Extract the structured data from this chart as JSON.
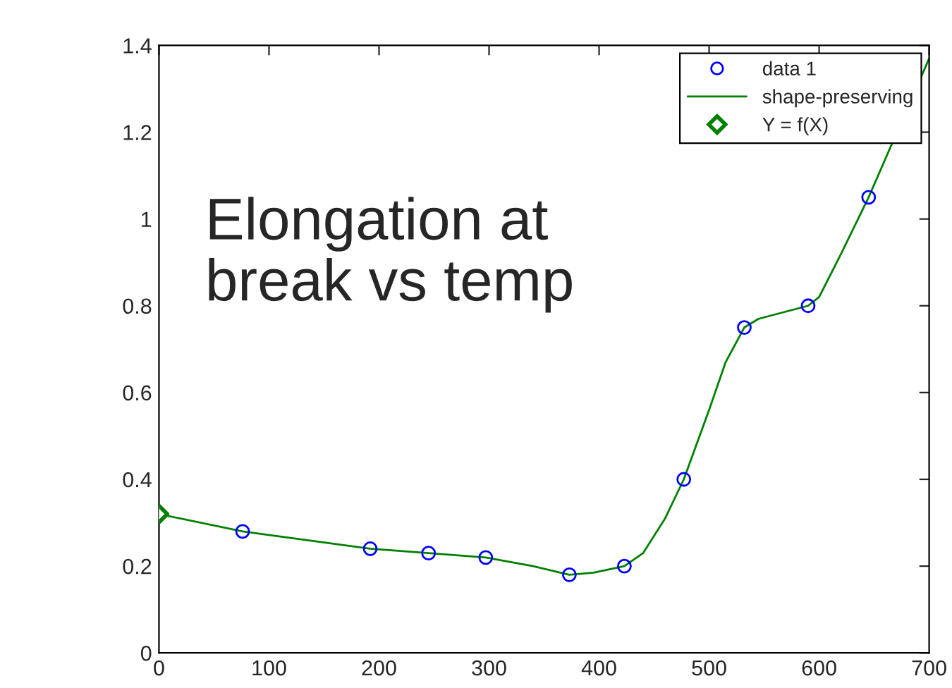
{
  "chart_data": {
    "type": "scatter",
    "title": "Elongation at break vs temp",
    "xlim": [
      0,
      700
    ],
    "xticks": [
      0,
      100,
      200,
      300,
      400,
      500,
      600,
      700
    ],
    "ylim": [
      0,
      1.4
    ],
    "yticks": [
      0,
      0.2,
      0.4,
      0.6,
      0.8,
      1,
      1.2,
      1.4
    ],
    "grid": false,
    "legend": "top right",
    "series": [
      {
        "name": "data 1",
        "marker": "circle",
        "color": "#0000ff",
        "x": [
          76,
          192,
          245,
          297,
          373,
          423,
          477,
          532,
          590,
          645
        ],
        "values": [
          0.28,
          0.24,
          0.23,
          0.22,
          0.18,
          0.2,
          0.4,
          0.75,
          0.8,
          1.05
        ]
      },
      {
        "name": "shape-preserving",
        "type": "line",
        "line_style": "solid",
        "color": "#008000",
        "x": [
          0,
          76,
          192,
          245,
          297,
          340,
          373,
          395,
          423,
          440,
          460,
          477,
          500,
          515,
          532,
          545,
          590,
          600,
          620,
          645,
          700
        ],
        "values": [
          0.32,
          0.28,
          0.24,
          0.23,
          0.22,
          0.2,
          0.18,
          0.185,
          0.2,
          0.23,
          0.31,
          0.4,
          0.56,
          0.67,
          0.75,
          0.77,
          0.8,
          0.82,
          0.92,
          1.05,
          1.37
        ]
      },
      {
        "name": "Y = f(X)",
        "marker": "diamond",
        "color": "#008000",
        "x": [
          0
        ],
        "values": [
          0.32
        ]
      }
    ]
  }
}
